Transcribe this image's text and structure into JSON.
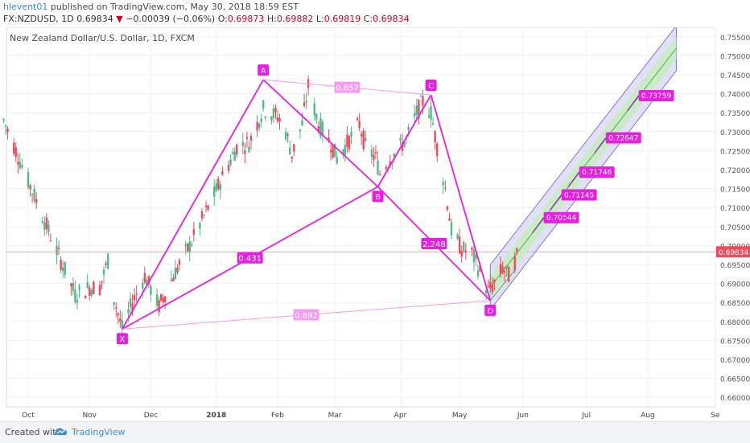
{
  "header": {
    "user": "hlevent01",
    "published": " published on TradingView.com, May 30, 2018 18:59 EST",
    "symbol": "FX:NZDUSD, 1D",
    "last": "0.69834",
    "change_arrow": "▼",
    "change": "−0.00039 (−0.06%)",
    "o_label": "O:",
    "o_val": "0.69873",
    "h_label": "H:",
    "h_val": "0.69882",
    "l_label": "L:",
    "l_val": "0.69819",
    "c_label": "C:",
    "c_val": "0.69834"
  },
  "footer": {
    "created_with": "Created with",
    "brand": "TradingView",
    "logo_icon": "tradingview-cloud-icon"
  },
  "chart_data": {
    "type": "candlestick",
    "title": "New Zealand Dollar/U.S. Dollar, 1D, FXCM",
    "ylim": [
      0.6575,
      0.7575
    ],
    "y_ticks": [
      "0.75500",
      "0.75000",
      "0.74500",
      "0.74000",
      "0.73500",
      "0.73000",
      "0.72500",
      "0.72000",
      "0.71500",
      "0.71000",
      "0.70500",
      "0.70000",
      "0.69500",
      "0.69000",
      "0.68500",
      "0.68000",
      "0.67500",
      "0.67000",
      "0.66500",
      "0.66000"
    ],
    "x_ticks": [
      {
        "label": "Oct",
        "date": "2017-10-02"
      },
      {
        "label": "Nov",
        "date": "2017-11-01"
      },
      {
        "label": "Dec",
        "date": "2017-12-01"
      },
      {
        "label": "2018",
        "date": "2018-01-02"
      },
      {
        "label": "Feb",
        "date": "2018-02-01"
      },
      {
        "label": "Mar",
        "date": "2018-03-01"
      },
      {
        "label": "Apr",
        "date": "2018-04-02"
      },
      {
        "label": "May",
        "date": "2018-05-01"
      },
      {
        "label": "Jun",
        "date": "2018-06-01"
      },
      {
        "label": "Jul",
        "date": "2018-07-02"
      },
      {
        "label": "Aug",
        "date": "2018-08-01"
      },
      {
        "label": "Se",
        "date": "2018-09-03"
      }
    ],
    "last_price": {
      "label": "0.69834",
      "value": 0.69834
    },
    "colors": {
      "up": "#53b987",
      "down": "#eb4d5c",
      "pattern": "#e91ee3",
      "pattern_light": "#f49cf0",
      "channel_fill": "#c9c7f0",
      "channel_inner": "#c8ecc0",
      "channel_line": "#4caf50",
      "channel_border": "#7b7bd0",
      "price_line": "#f4a6ae",
      "price_label": "#eb4d5c"
    },
    "candle_path": [
      [
        "2017-09-20",
        0.733
      ],
      [
        "2017-10-05",
        0.713
      ],
      [
        "2017-10-18",
        0.696
      ],
      [
        "2017-10-25",
        0.687
      ],
      [
        "2017-11-01",
        0.689
      ],
      [
        "2017-11-06",
        0.689
      ],
      [
        "2017-11-10",
        0.696
      ],
      [
        "2017-11-13",
        0.686
      ],
      [
        "2017-11-17",
        0.678
      ],
      [
        "2017-11-22",
        0.685
      ],
      [
        "2017-11-28",
        0.692
      ],
      [
        "2017-12-05",
        0.684
      ],
      [
        "2017-12-12",
        0.692
      ],
      [
        "2017-12-20",
        0.7
      ],
      [
        "2017-12-29",
        0.71
      ],
      [
        "2018-01-05",
        0.718
      ],
      [
        "2018-01-12",
        0.726
      ],
      [
        "2018-01-18",
        0.727
      ],
      [
        "2018-01-25",
        0.736
      ],
      [
        "2018-02-01",
        0.734
      ],
      [
        "2018-02-05",
        0.73
      ],
      [
        "2018-02-08",
        0.724
      ],
      [
        "2018-02-13",
        0.732
      ],
      [
        "2018-02-16",
        0.742
      ],
      [
        "2018-02-21",
        0.732
      ],
      [
        "2018-02-27",
        0.727
      ],
      [
        "2018-03-02",
        0.723
      ],
      [
        "2018-03-07",
        0.727
      ],
      [
        "2018-03-13",
        0.732
      ],
      [
        "2018-03-16",
        0.726
      ],
      [
        "2018-03-21",
        0.723
      ],
      [
        "2018-03-23",
        0.719
      ],
      [
        "2018-03-28",
        0.723
      ],
      [
        "2018-04-02",
        0.726
      ],
      [
        "2018-04-05",
        0.728
      ],
      [
        "2018-04-10",
        0.735
      ],
      [
        "2018-04-13",
        0.738
      ],
      [
        "2018-04-17",
        0.735
      ],
      [
        "2018-04-20",
        0.726
      ],
      [
        "2018-04-24",
        0.715
      ],
      [
        "2018-04-27",
        0.704
      ],
      [
        "2018-05-02",
        0.699
      ],
      [
        "2018-05-07",
        0.698
      ],
      [
        "2018-05-11",
        0.693
      ],
      [
        "2018-05-15",
        0.688
      ],
      [
        "2018-05-18",
        0.69
      ],
      [
        "2018-05-22",
        0.694
      ],
      [
        "2018-05-25",
        0.692
      ],
      [
        "2018-05-30",
        0.6983
      ]
    ],
    "pattern_points": [
      {
        "label": "X",
        "date": "2017-11-17",
        "value": 0.678
      },
      {
        "label": "A",
        "date": "2018-01-25",
        "value": 0.7437
      },
      {
        "label": "B",
        "date": "2018-03-22",
        "value": 0.7155
      },
      {
        "label": "C",
        "date": "2018-04-17",
        "value": 0.7397
      },
      {
        "label": "D",
        "date": "2018-05-16",
        "value": 0.6855
      }
    ],
    "pattern_ratios": [
      "0.857",
      "0.431",
      "2.248",
      "0.892"
    ],
    "targets": [
      "0.73759",
      "0.72647",
      "0.71746",
      "0.71145",
      "0.70544"
    ],
    "target_values": [
      0.73759,
      0.72647,
      0.71746,
      0.71145,
      0.70544
    ],
    "channel": {
      "start_date": "2018-05-16",
      "end_date": "2018-08-15",
      "start_mid": 0.689,
      "end_mid": 0.752
    }
  }
}
